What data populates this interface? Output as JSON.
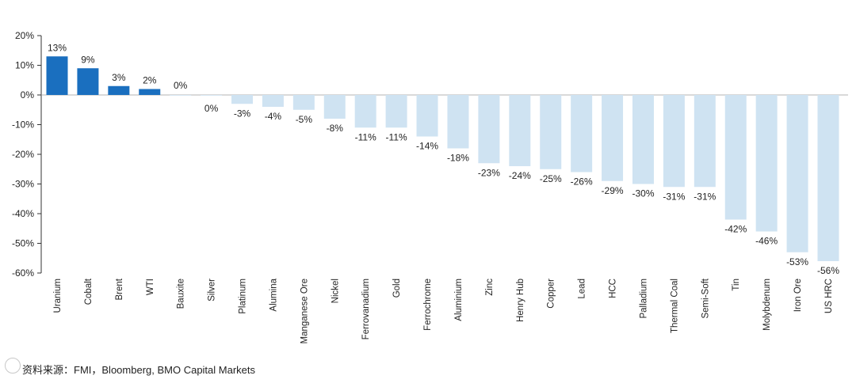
{
  "colors": {
    "positive": "#1a6fbf",
    "negative": "#cfe3f2",
    "axis": "#333333",
    "text": "#222222"
  },
  "source": "资料来源：FMI，Bloomberg, BMO Capital Markets",
  "chart_data": {
    "type": "bar",
    "title": "",
    "xlabel": "",
    "ylabel": "",
    "ylim": [
      -60,
      20
    ],
    "yticks": [
      20,
      10,
      0,
      -10,
      -20,
      -30,
      -40,
      -50,
      -60
    ],
    "ytick_labels": [
      "20%",
      "10%",
      "0%",
      "-10%",
      "-20%",
      "-30%",
      "-40%",
      "-50%",
      "-60%"
    ],
    "grid": false,
    "categories": [
      "Uranium",
      "Cobalt",
      "Brent",
      "WTI",
      "Bauxite",
      "Silver",
      "Platinum",
      "Alumina",
      "Manganese Ore",
      "Nickel",
      "Ferrovanadium",
      "Gold",
      "Ferrochrome",
      "Aluminium",
      "Zinc",
      "Henry Hub",
      "Copper",
      "Lead",
      "HCC",
      "Palladium",
      "Thermal Coal",
      "Semi-Soft",
      "Tin",
      "Molybdenum",
      "Iron Ore",
      "US HRC"
    ],
    "values": [
      13,
      9,
      3,
      2,
      0,
      0,
      -3,
      -4,
      -5,
      -8,
      -11,
      -11,
      -14,
      -18,
      -23,
      -24,
      -25,
      -26,
      -29,
      -30,
      -31,
      -31,
      -42,
      -46,
      -53,
      -56
    ],
    "labels": [
      "13%",
      "9%",
      "3%",
      "2%",
      "0%",
      "0%",
      "-3%",
      "-4%",
      "-5%",
      "-8%",
      "-11%",
      "-11%",
      "-14%",
      "-18%",
      "-23%",
      "-24%",
      "-25%",
      "-26%",
      "-29%",
      "-30%",
      "-31%",
      "-31%",
      "-42%",
      "-46%",
      "-53%",
      "-56%"
    ]
  }
}
